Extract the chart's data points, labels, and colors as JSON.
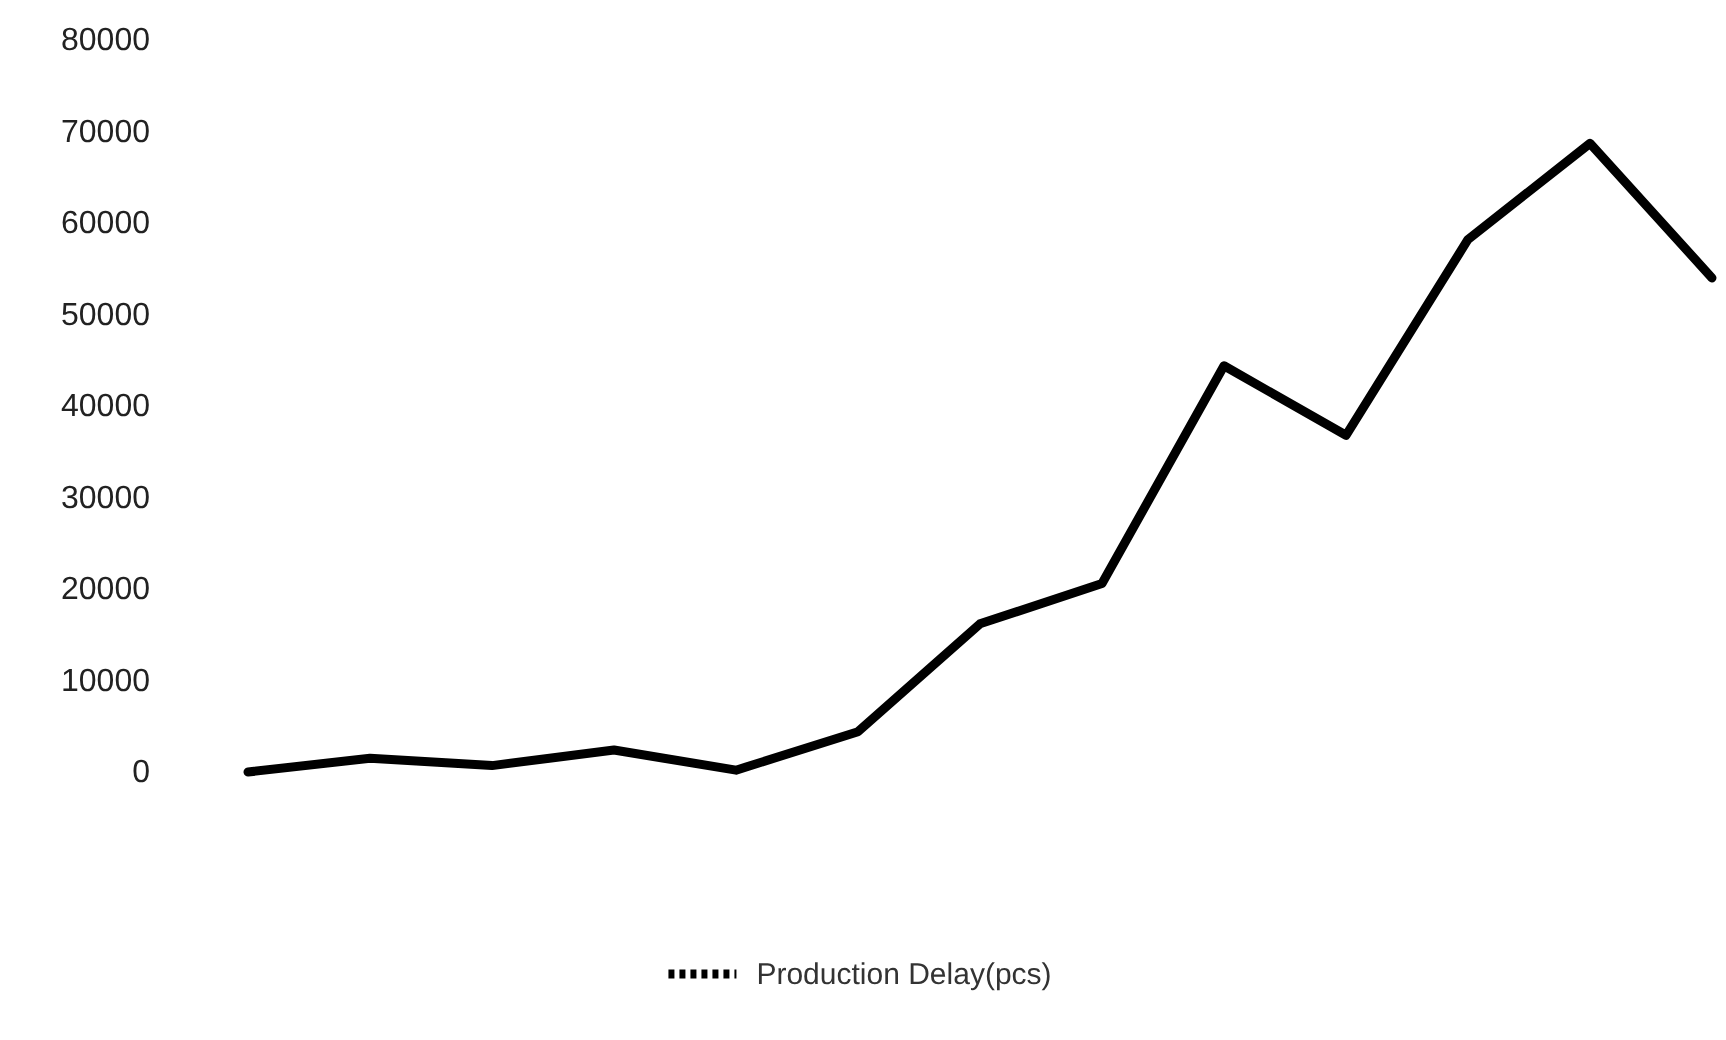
{
  "chart_data": {
    "type": "line",
    "categories": [
      null,
      null,
      null,
      null,
      null,
      null,
      null,
      null,
      null,
      null,
      null,
      null,
      null
    ],
    "series": [
      {
        "name": "Production Delay(pcs)",
        "color": "#000000",
        "values": [
          0,
          1500,
          700,
          2400,
          200,
          4400,
          16200,
          20600,
          44400,
          36800,
          58200,
          68700,
          54000
        ]
      }
    ],
    "ylim": [
      0,
      80000
    ],
    "yticks": [
      0,
      10000,
      20000,
      30000,
      40000,
      50000,
      60000,
      70000,
      80000
    ],
    "grid": false,
    "legend": "bottom",
    "marker": "none",
    "line_style": "solid"
  }
}
